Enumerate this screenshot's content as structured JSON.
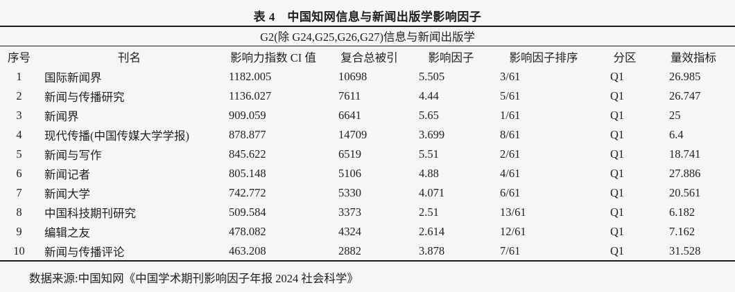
{
  "title": "表 4　中国知网信息与新闻出版学影响因子",
  "table": {
    "group_header": "G2(除 G24,G25,G26,G27)信息与新闻出版学",
    "columns": [
      "序号",
      "刊名",
      "影响力指数 CI 值",
      "复合总被引",
      "影响因子",
      "影响因子排序",
      "分区",
      "量效指标"
    ],
    "rows": [
      [
        "1",
        "国际新闻界",
        "1182.005",
        "10698",
        "5.505",
        "3/61",
        "Q1",
        "26.985"
      ],
      [
        "2",
        "新闻与传播研究",
        "1136.027",
        "7611",
        "4.44",
        "5/61",
        "Q1",
        "26.747"
      ],
      [
        "3",
        "新闻界",
        "909.059",
        "6641",
        "5.65",
        "1/61",
        "Q1",
        "25"
      ],
      [
        "4",
        "现代传播(中国传媒大学学报)",
        "878.877",
        "14709",
        "3.699",
        "8/61",
        "Q1",
        "6.4"
      ],
      [
        "5",
        "新闻与写作",
        "845.622",
        "6519",
        "5.51",
        "2/61",
        "Q1",
        "18.741"
      ],
      [
        "6",
        "新闻记者",
        "805.148",
        "5106",
        "4.88",
        "4/61",
        "Q1",
        "27.886"
      ],
      [
        "7",
        "新闻大学",
        "742.772",
        "5330",
        "4.071",
        "6/61",
        "Q1",
        "20.561"
      ],
      [
        "8",
        "中国科技期刊研究",
        "509.584",
        "3373",
        "2.51",
        "13/61",
        "Q1",
        "6.182"
      ],
      [
        "9",
        "编辑之友",
        "478.082",
        "4324",
        "2.614",
        "12/61",
        "Q1",
        "7.162"
      ],
      [
        "10",
        "新闻与传播评论",
        "463.208",
        "2882",
        "3.878",
        "7/61",
        "Q1",
        "31.528"
      ]
    ],
    "source": "数据来源:中国知网《中国学术期刊影响因子年报 2024 社会科学》"
  }
}
